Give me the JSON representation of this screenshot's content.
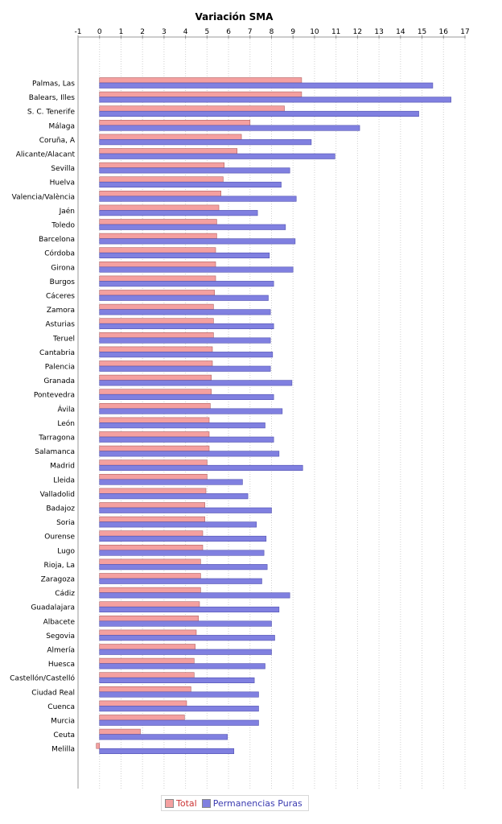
{
  "chart_data": {
    "type": "bar",
    "orientation": "horizontal",
    "title": "Variación SMA",
    "xlim": [
      -1,
      17
    ],
    "x_ticks": [
      "-1",
      "0",
      "1",
      "2",
      "3",
      "4",
      "5",
      "6",
      "7",
      "8",
      "9",
      "10",
      "11",
      "12",
      "13",
      "14",
      "15",
      "16",
      "17"
    ],
    "grid": "vertical dotted",
    "legend_position": "bottom",
    "categories": [
      "Palmas, Las",
      "Balears, Illes",
      "S. C. Tenerife",
      "Málaga",
      "Coruña, A",
      "Alicante/Alacant",
      "Sevilla",
      "Huelva",
      "Valencia/València",
      "Jaén",
      "Toledo",
      "Barcelona",
      "Córdoba",
      "Girona",
      "Burgos",
      "Cáceres",
      "Zamora",
      "Asturias",
      "Teruel",
      "Cantabria",
      "Palencia",
      "Granada",
      "Pontevedra",
      "Ávila",
      "León",
      "Tarragona",
      "Salamanca",
      "Madrid",
      "Lleida",
      "Valladolid",
      "Badajoz",
      "Soria",
      "Ourense",
      "Lugo",
      "Rioja, La",
      "Zaragoza",
      "Cádiz",
      "Guadalajara",
      "Albacete",
      "Segovia",
      "Almería",
      "Huesca",
      "Castellón/Castelló",
      "Ciudad Real",
      "Cuenca",
      "Murcia",
      "Ceuta",
      "Melilla"
    ],
    "series": [
      {
        "name": "Total",
        "color": "#f4a0a0",
        "values": [
          9.4,
          9.4,
          8.6,
          7.0,
          6.6,
          6.4,
          5.8,
          5.75,
          5.65,
          5.55,
          5.45,
          5.45,
          5.4,
          5.4,
          5.4,
          5.35,
          5.3,
          5.3,
          5.3,
          5.25,
          5.25,
          5.2,
          5.2,
          5.15,
          5.1,
          5.1,
          5.1,
          5.0,
          5.0,
          4.95,
          4.9,
          4.9,
          4.8,
          4.8,
          4.7,
          4.7,
          4.7,
          4.65,
          4.6,
          4.5,
          4.45,
          4.4,
          4.4,
          4.25,
          4.05,
          3.95,
          1.9,
          -0.15
        ]
      },
      {
        "name": "Permanencias Puras",
        "color": "#8080e0",
        "values": [
          15.5,
          16.35,
          14.85,
          12.1,
          9.85,
          10.95,
          8.85,
          8.45,
          9.15,
          7.35,
          8.65,
          9.1,
          7.9,
          9.0,
          8.1,
          7.85,
          7.95,
          8.1,
          7.95,
          8.05,
          7.95,
          8.95,
          8.1,
          8.5,
          7.7,
          8.1,
          8.35,
          9.45,
          6.65,
          6.9,
          8.0,
          7.3,
          7.75,
          7.65,
          7.8,
          7.55,
          8.85,
          8.35,
          8.0,
          8.15,
          8.0,
          7.7,
          7.2,
          7.4,
          7.4,
          7.4,
          5.95,
          6.25
        ]
      }
    ]
  }
}
